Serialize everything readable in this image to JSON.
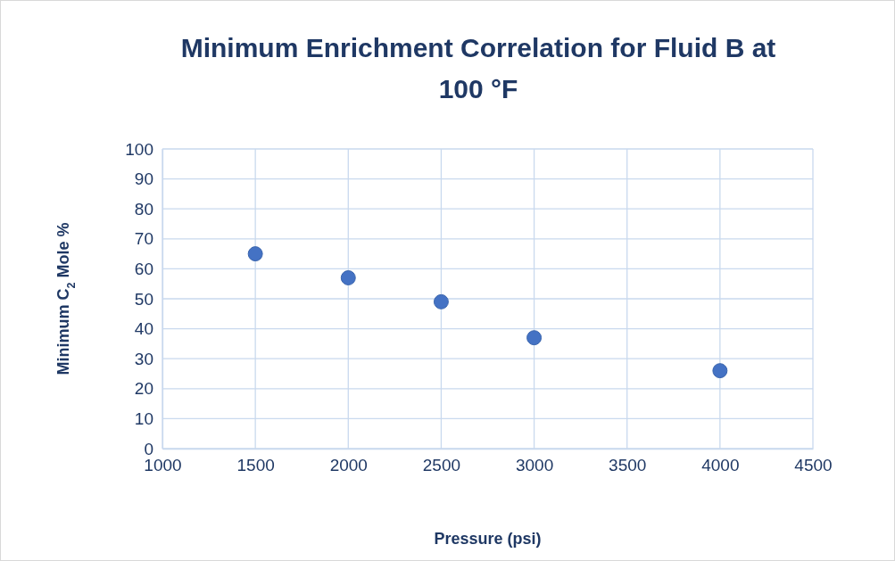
{
  "chart_data": {
    "type": "scatter",
    "title": "Minimum Enrichment Correlation for Fluid B at 100 °F",
    "xlabel": "Pressure (psi)",
    "ylabel": "Minimum C$_{2}$ Mole %",
    "x": [
      1500,
      2000,
      2500,
      3000,
      4000
    ],
    "series": [
      {
        "color": "#4472c4",
        "values": [
          65,
          57,
          49,
          37,
          26
        ]
      }
    ],
    "xlim": [
      1000,
      4500
    ],
    "xticks": [
      1000,
      1500,
      2000,
      2500,
      3000,
      3500,
      4000,
      4500
    ],
    "ylim": [
      0,
      100
    ],
    "yticks": [
      0,
      10,
      20,
      30,
      40,
      50,
      60,
      70,
      80,
      90,
      100
    ],
    "grid": true,
    "marker": "circle"
  }
}
